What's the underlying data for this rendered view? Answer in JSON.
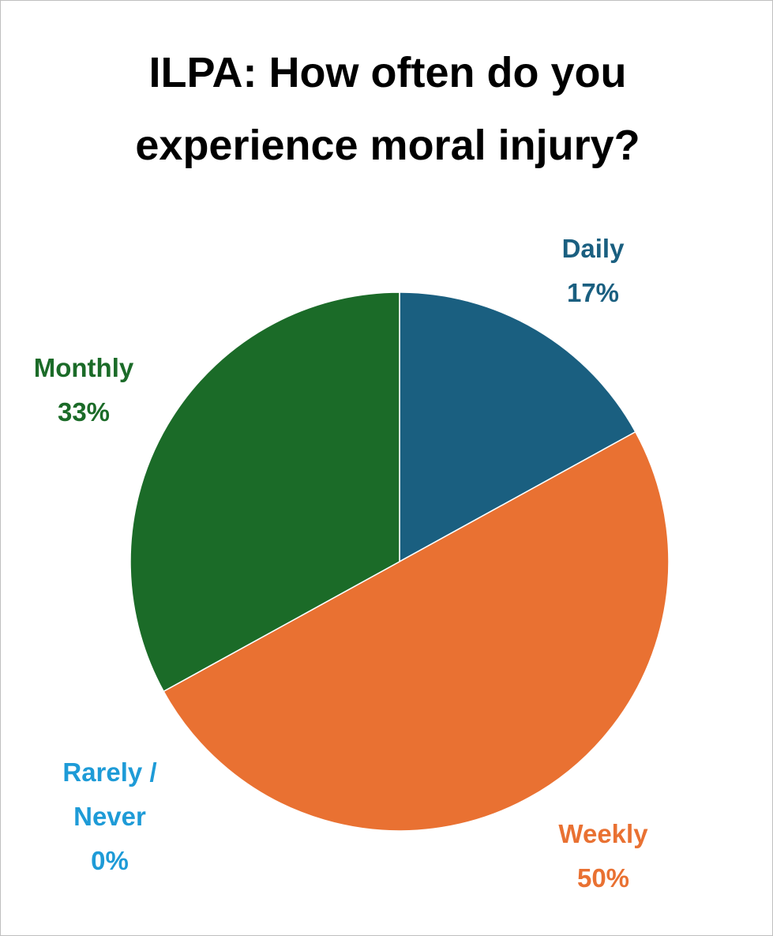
{
  "chart_data": {
    "type": "pie",
    "title": "ILPA: How often do you experience moral injury?",
    "categories": [
      "Daily",
      "Weekly",
      "Rarely / Never",
      "Monthly"
    ],
    "values": [
      17,
      50,
      0,
      33
    ],
    "value_labels": [
      "17%",
      "50%",
      "0%",
      "33%"
    ],
    "colors": [
      "#1a5f80",
      "#e97132",
      "#1e9bd7",
      "#1b6b28"
    ]
  }
}
